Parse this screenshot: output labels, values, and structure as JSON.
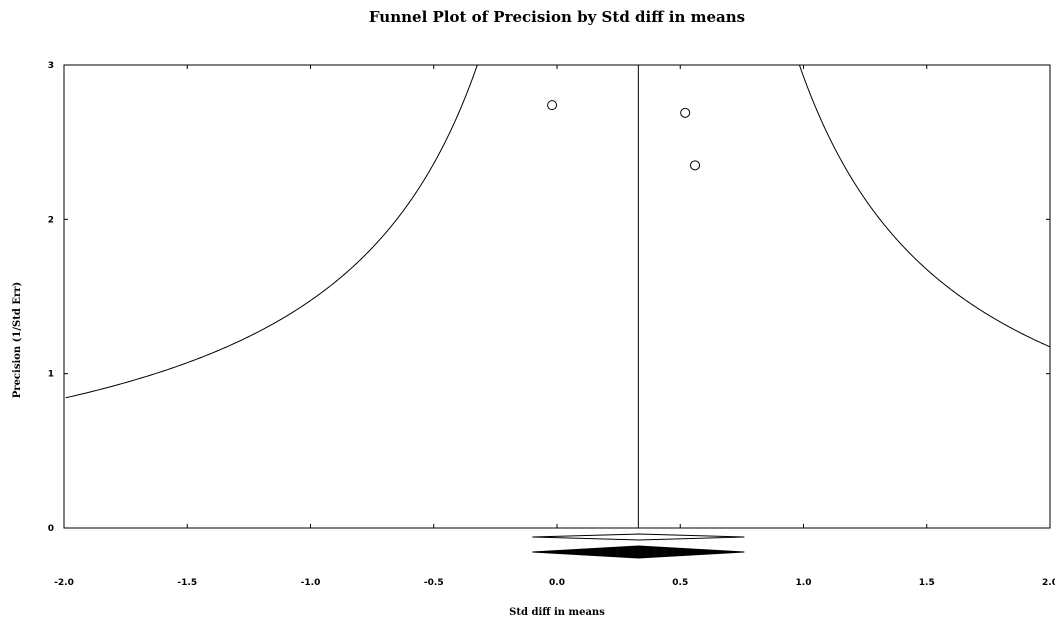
{
  "chart_data": {
    "type": "scatter",
    "title": "Funnel Plot of Precision by Std diff in means",
    "xlabel": "Std diff in means",
    "ylabel": "Precision (1/Std Err)",
    "xlim": [
      -2.0,
      2.0
    ],
    "ylim": [
      0,
      3
    ],
    "x_ticks": [
      -2.0,
      -1.5,
      -1.0,
      -0.5,
      0.0,
      0.5,
      1.0,
      1.5,
      2.0
    ],
    "x_tick_labels": [
      "-2.0",
      "-1.5",
      "-1.0",
      "-0.5",
      "0.0",
      "0.5",
      "1.0",
      "1.5",
      "2.0"
    ],
    "y_ticks": [
      0,
      1,
      2,
      3
    ],
    "y_tick_labels": [
      "0",
      "1",
      "2",
      "3"
    ],
    "grid": false,
    "legend": "none",
    "points": [
      {
        "x": -0.02,
        "y": 2.74
      },
      {
        "x": 0.52,
        "y": 2.69
      },
      {
        "x": 0.56,
        "y": 2.35
      }
    ],
    "pooled_effect": 0.33,
    "funnel": {
      "center": 0.33,
      "z": 1.96,
      "precision_min": 0.5
    },
    "summary_diamonds": [
      {
        "estimate": 0.33,
        "ci_lower": -0.1,
        "ci_upper": 0.76,
        "fill": "none"
      },
      {
        "estimate": 0.33,
        "ci_lower": -0.1,
        "ci_upper": 0.76,
        "fill": "#000000"
      }
    ],
    "colors": {
      "line": "#000000",
      "background": "#ffffff"
    }
  }
}
